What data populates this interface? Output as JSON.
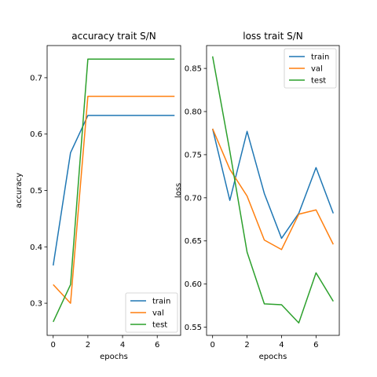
{
  "chart_data": [
    {
      "type": "line",
      "title": "accuracy trait S/N",
      "xlabel": "epochs",
      "ylabel": "accuracy",
      "xlim": [
        -0.35,
        7.35
      ],
      "ylim": [
        0.243,
        0.757
      ],
      "xticks": [
        0,
        2,
        4,
        6
      ],
      "yticks": [
        0.3,
        0.4,
        0.5,
        0.6,
        0.7
      ],
      "legend_position": "lower-right",
      "x": [
        0,
        1,
        2,
        3,
        4,
        5,
        6,
        7
      ],
      "series": [
        {
          "name": "train",
          "color": "#1f77b4",
          "values": [
            0.367,
            0.567,
            0.633,
            0.633,
            0.633,
            0.633,
            0.633,
            0.633
          ]
        },
        {
          "name": "val",
          "color": "#ff7f0e",
          "values": [
            0.333,
            0.3,
            0.667,
            0.667,
            0.667,
            0.667,
            0.667,
            0.667
          ]
        },
        {
          "name": "test",
          "color": "#2ca02c",
          "values": [
            0.267,
            0.333,
            0.733,
            0.733,
            0.733,
            0.733,
            0.733,
            0.733
          ]
        }
      ]
    },
    {
      "type": "line",
      "title": "loss trait S/N",
      "xlabel": "epochs",
      "ylabel": "loss",
      "xlim": [
        -0.35,
        7.35
      ],
      "ylim": [
        0.5405,
        0.8765
      ],
      "xticks": [
        0,
        2,
        4,
        6
      ],
      "yticks": [
        0.55,
        0.6,
        0.65,
        0.7,
        0.75,
        0.8,
        0.85
      ],
      "legend_position": "upper-right",
      "x": [
        0,
        1,
        2,
        3,
        4,
        5,
        6,
        7
      ],
      "series": [
        {
          "name": "train",
          "color": "#1f77b4",
          "values": [
            0.78,
            0.697,
            0.777,
            0.705,
            0.653,
            0.682,
            0.735,
            0.682
          ]
        },
        {
          "name": "val",
          "color": "#ff7f0e",
          "values": [
            0.78,
            0.733,
            0.702,
            0.651,
            0.64,
            0.681,
            0.686,
            0.646
          ]
        },
        {
          "name": "test",
          "color": "#2ca02c",
          "values": [
            0.864,
            0.754,
            0.637,
            0.577,
            0.576,
            0.555,
            0.613,
            0.58
          ]
        }
      ]
    }
  ]
}
